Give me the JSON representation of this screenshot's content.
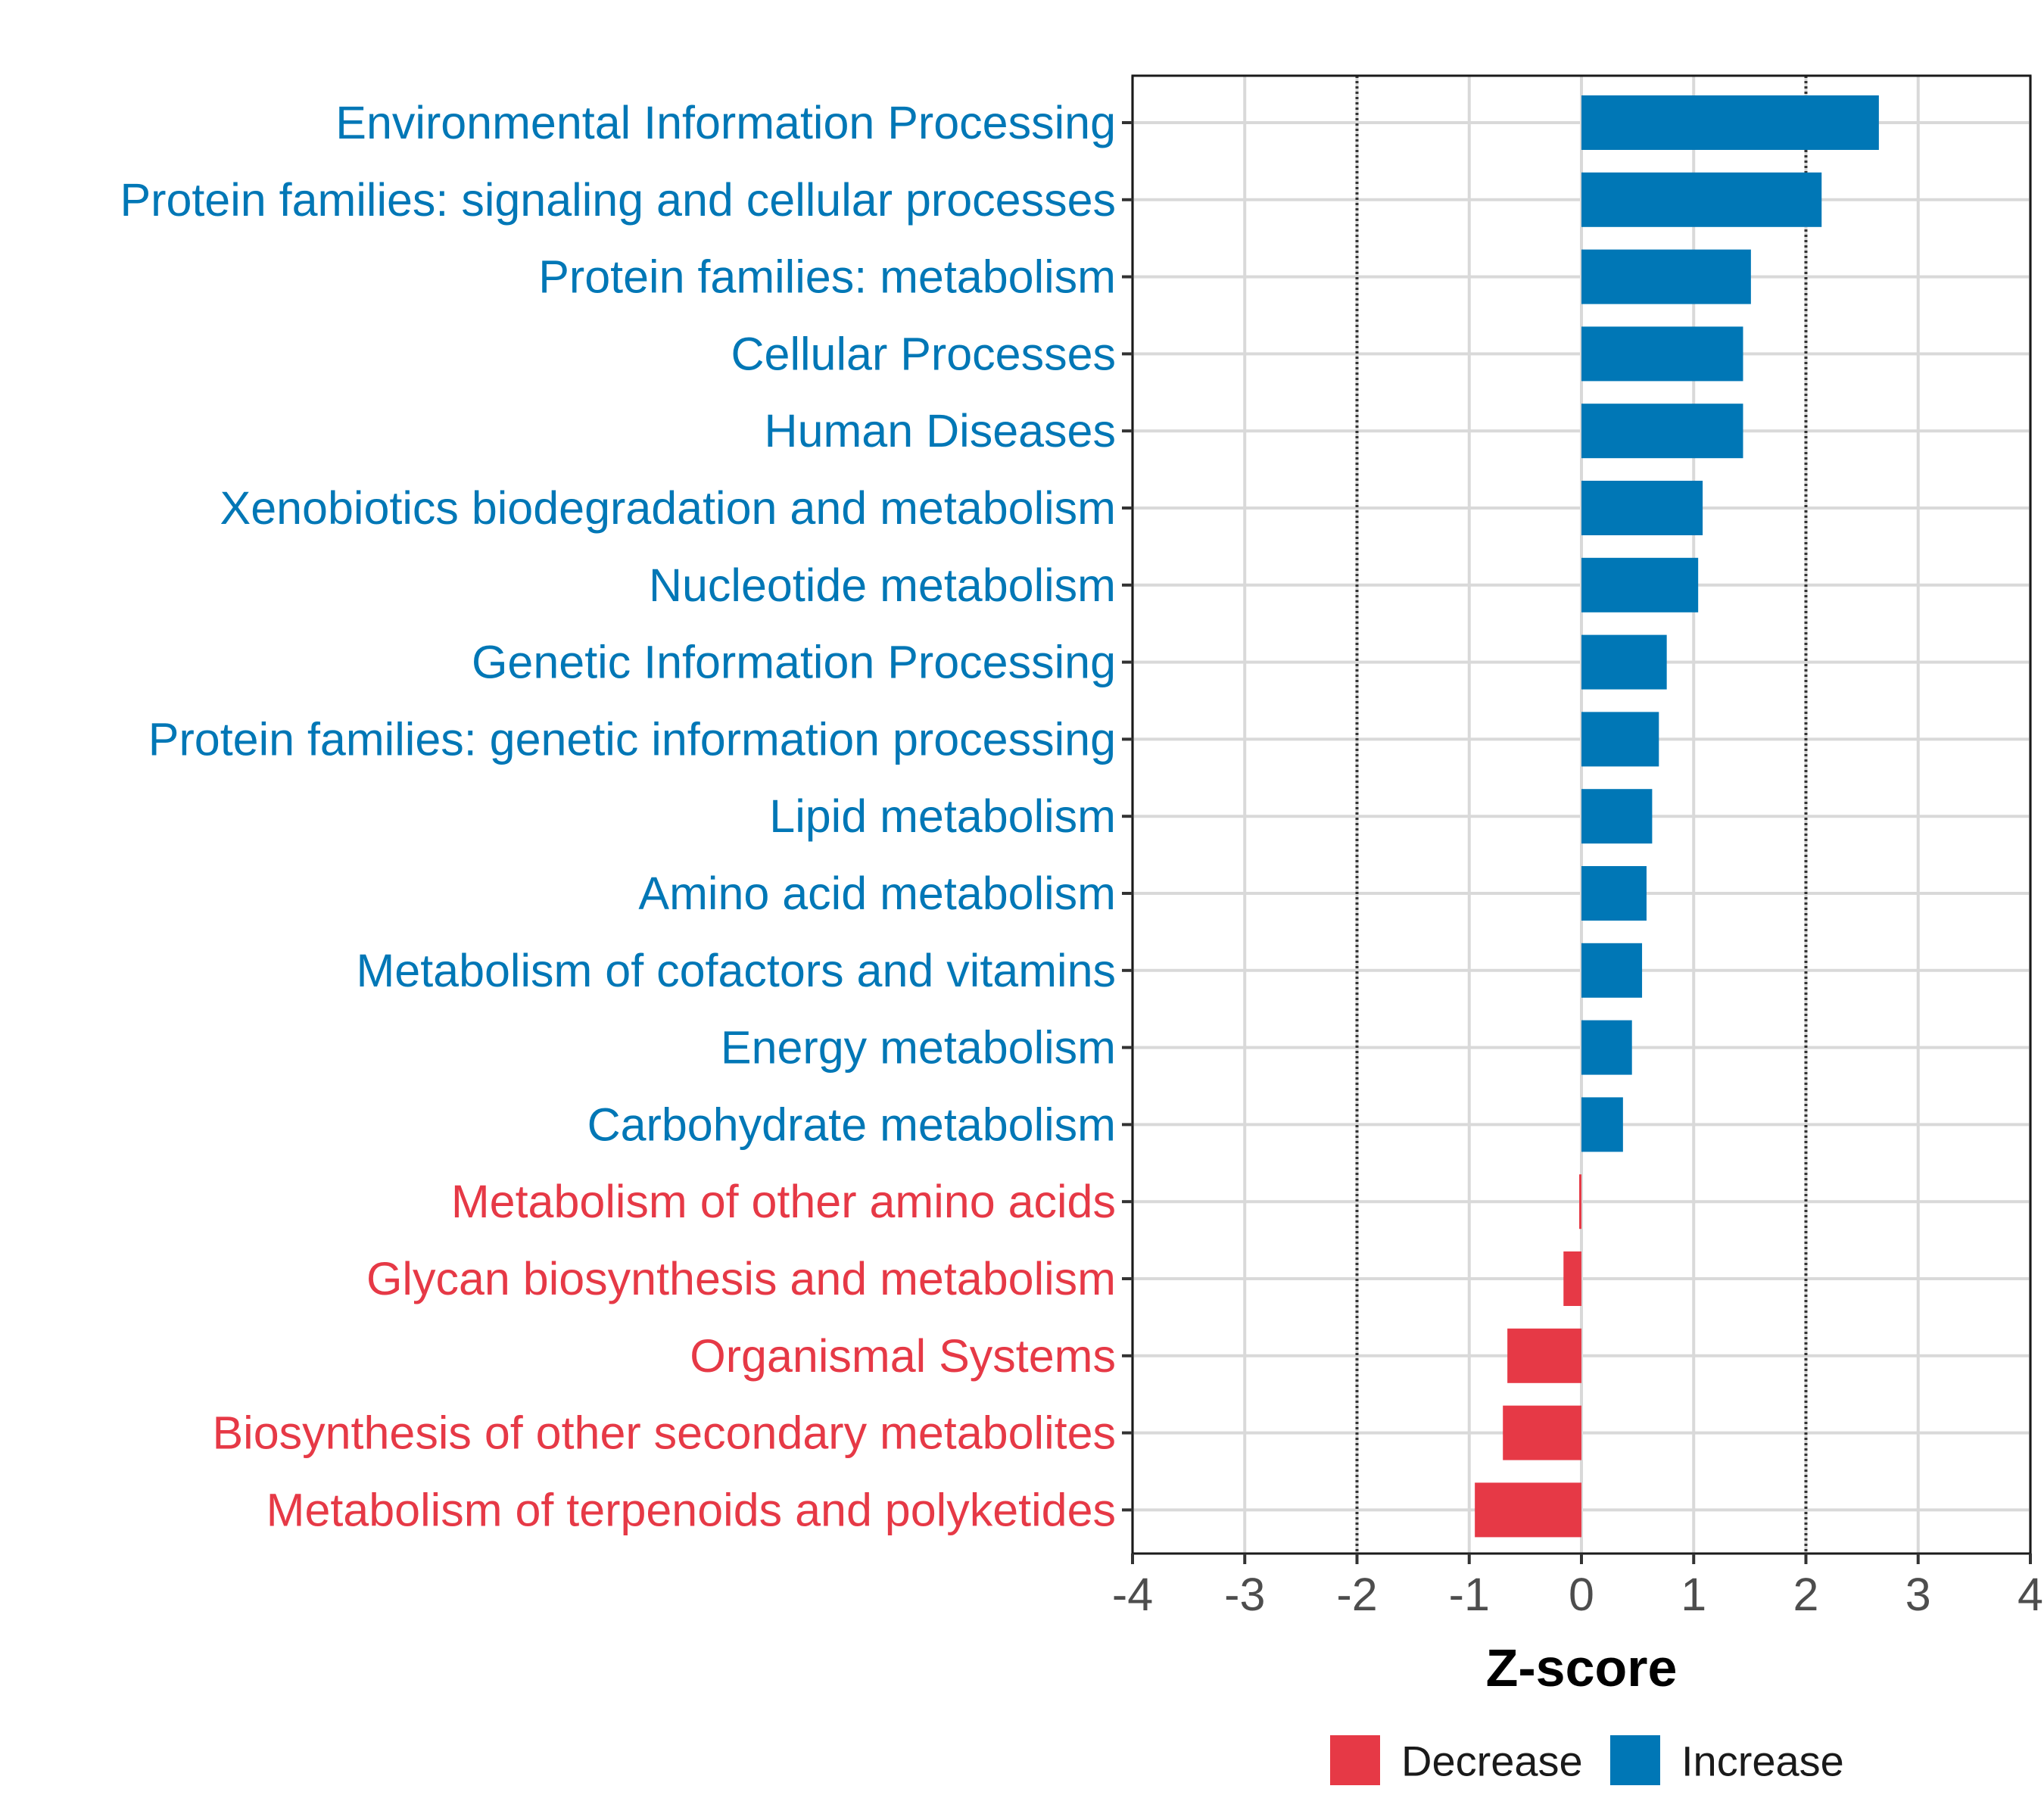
{
  "chart_data": {
    "type": "bar",
    "orientation": "horizontal",
    "xlabel": "Z-score",
    "xlim": [
      -4,
      4
    ],
    "xticks": [
      -4,
      -3,
      -2,
      -1,
      0,
      1,
      2,
      3,
      4
    ],
    "xtick_labels": [
      "-4",
      "-3",
      "-2",
      "-1",
      "0",
      "1",
      "2",
      "3",
      "4"
    ],
    "reference_lines": [
      -2,
      2
    ],
    "grid": true,
    "legend_position": "bottom",
    "colors": {
      "Decrease": "#e63946",
      "Increase": "#0077b6"
    },
    "legend": [
      {
        "label": "Decrease",
        "color": "#e63946"
      },
      {
        "label": "Increase",
        "color": "#0077b6"
      }
    ],
    "categories": [
      "Environmental Information Processing",
      "Protein families: signaling and cellular processes",
      "Protein families: metabolism",
      "Cellular Processes",
      "Human Diseases",
      "Xenobiotics biodegradation and metabolism",
      "Nucleotide metabolism",
      "Genetic Information Processing",
      "Protein families: genetic information processing",
      "Lipid metabolism",
      "Amino acid metabolism",
      "Metabolism of cofactors and vitamins",
      "Energy metabolism",
      "Carbohydrate metabolism",
      "Metabolism of other amino acids",
      "Glycan biosynthesis and metabolism",
      "Organismal Systems",
      "Biosynthesis of other secondary metabolites",
      "Metabolism of terpenoids and polyketides"
    ],
    "values": [
      2.65,
      2.14,
      1.51,
      1.44,
      1.44,
      1.08,
      1.04,
      0.76,
      0.69,
      0.63,
      0.58,
      0.54,
      0.45,
      0.37,
      -0.02,
      -0.16,
      -0.66,
      -0.7,
      -0.95
    ],
    "groups": [
      "Increase",
      "Increase",
      "Increase",
      "Increase",
      "Increase",
      "Increase",
      "Increase",
      "Increase",
      "Increase",
      "Increase",
      "Increase",
      "Increase",
      "Increase",
      "Increase",
      "Decrease",
      "Decrease",
      "Decrease",
      "Decrease",
      "Decrease"
    ]
  }
}
